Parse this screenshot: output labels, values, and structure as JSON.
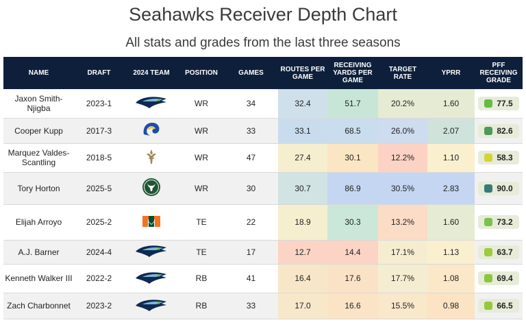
{
  "title": "Seahawks Receiver Depth Chart",
  "subtitle": "All stats and grades from the last three seasons",
  "headers": {
    "name": "NAME",
    "draft": "DRAFT",
    "team": "2024 TEAM",
    "position": "POSITION",
    "games": "GAMES",
    "routes": "ROUTES PER GAME",
    "yards": "RECEIVING YARDS PER GAME",
    "target": "TARGET RATE",
    "yprr": "YPRR",
    "grade": "PFF RECEIVING GRADE"
  },
  "rows": [
    {
      "name": "Jaxon Smith-Njigba",
      "draft": "2023-1",
      "team_icon": "seahawks-logo",
      "position": "WR",
      "games": "34",
      "routes": "32.4",
      "yards": "51.7",
      "target": "20.2%",
      "yprr": "1.60",
      "grade": "77.5",
      "colors": {
        "routes": "#cfe0ea",
        "yards": "#c8e6d8",
        "target": "#e6ecd3",
        "yprr": "#e6ecd3",
        "grade_dot": "#66bb44"
      }
    },
    {
      "name": "Cooper Kupp",
      "draft": "2017-3",
      "team_icon": "rams-logo",
      "position": "WR",
      "games": "33",
      "routes": "33.1",
      "yards": "68.5",
      "target": "26.0%",
      "yprr": "2.07",
      "grade": "82.6",
      "colors": {
        "routes": "#c9dcee",
        "yards": "#c9ddef",
        "target": "#cddcef",
        "yprr": "#cfe3dc",
        "grade_dot": "#4a9a5a"
      }
    },
    {
      "name": "Marquez Valdes-Scantling",
      "draft": "2018-5",
      "team_icon": "saints-logo",
      "position": "WR",
      "games": "47",
      "routes": "27.4",
      "yards": "30.1",
      "target": "12.2%",
      "yprr": "1.10",
      "grade": "58.3",
      "colors": {
        "routes": "#f6efcf",
        "yards": "#fbe6c4",
        "target": "#fbd2c4",
        "yprr": "#faefcf",
        "grade_dot": "#d4d434"
      }
    },
    {
      "name": "Tory Horton",
      "draft": "2025-5",
      "team_icon": "colorado-state-logo",
      "position": "WR",
      "games": "30",
      "routes": "30.7",
      "yards": "86.9",
      "target": "30.5%",
      "yprr": "2.83",
      "grade": "90.0",
      "colors": {
        "routes": "#d1e3e2",
        "yards": "#c4d6f2",
        "target": "#c4d6f2",
        "yprr": "#c4d6f2",
        "grade_dot": "#3a7a78"
      }
    },
    {
      "name": "Elijah Arroyo",
      "draft": "2025-2",
      "team_icon": "miami-logo",
      "position": "TE",
      "games": "22",
      "routes": "18.9",
      "yards": "30.3",
      "target": "13.2%",
      "yprr": "1.60",
      "grade": "73.2",
      "colors": {
        "routes": "#f5efcf",
        "yards": "#cbe7d9",
        "target": "#fbdcc6",
        "yprr": "#e6ecd3",
        "grade_dot": "#7ac24a"
      }
    },
    {
      "name": "A.J. Barner",
      "draft": "2024-4",
      "team_icon": "seahawks-logo",
      "position": "TE",
      "games": "17",
      "routes": "12.7",
      "yards": "14.4",
      "target": "17.1%",
      "yprr": "1.13",
      "grade": "63.7",
      "colors": {
        "routes": "#fbd4c6",
        "yards": "#fbd4c6",
        "target": "#f6edd1",
        "yprr": "#faefcf",
        "grade_dot": "#9ccc3c"
      }
    },
    {
      "name": "Kenneth Walker III",
      "draft": "2022-2",
      "team_icon": "seahawks-logo",
      "position": "RB",
      "games": "41",
      "routes": "16.4",
      "yards": "17.6",
      "target": "17.7%",
      "yprr": "1.08",
      "grade": "69.4",
      "colors": {
        "routes": "#f8e6c8",
        "yards": "#fae2c6",
        "target": "#f5edd2",
        "yprr": "#fbe8c9",
        "grade_dot": "#8cc63c"
      }
    },
    {
      "name": "Zach Charbonnet",
      "draft": "2023-2",
      "team_icon": "seahawks-logo",
      "position": "RB",
      "games": "33",
      "routes": "17.0",
      "yards": "16.6",
      "target": "15.5%",
      "yprr": "0.98",
      "grade": "66.5",
      "colors": {
        "routes": "#f7e8ca",
        "yards": "#fbe3c6",
        "target": "#fae8cb",
        "yprr": "#fbe3c4",
        "grade_dot": "#96c83c"
      }
    }
  ]
}
